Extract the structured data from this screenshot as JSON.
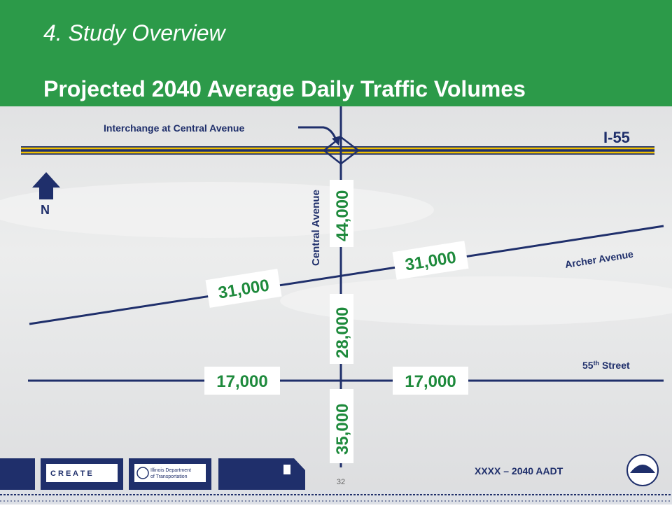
{
  "header": {
    "section": "4. Study Overview",
    "title": "Projected 2040 Average Daily Traffic Volumes"
  },
  "map": {
    "interchange_label": "Interchange at Central Avenue",
    "highway": "I-55",
    "central_avenue": "Central Avenue",
    "archer_avenue": "Archer Avenue",
    "street_label": {
      "number": "55",
      "suffix": "th",
      "name": "Street"
    },
    "north": "N",
    "volumes": {
      "central_north": "44,000",
      "central_middle": "28,000",
      "central_south": "35,000",
      "archer_west": "31,000",
      "archer_east": "31,000",
      "street_west": "17,000",
      "street_east": "17,000"
    }
  },
  "footer": {
    "legend": "XXXX – 2040 AADT",
    "page_number": "32",
    "create_logo": "C R E A T E",
    "idot_logo": [
      "Illinois Department",
      "of Transportation"
    ]
  }
}
